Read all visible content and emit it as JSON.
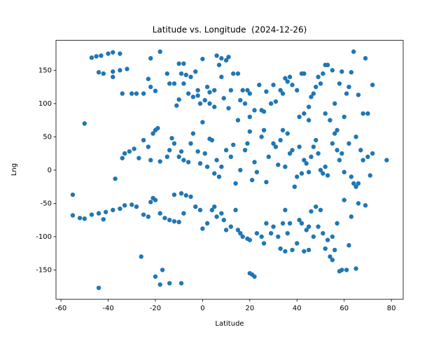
{
  "chart_data": {
    "type": "scatter",
    "title": "Latitude vs. Longitude  (2024-12-26)",
    "x_label": "Latitude",
    "y_label": "Lng",
    "color": "#1f77b4",
    "xlim": [
      -62.1,
      85.0
    ],
    "ylim": [
      -194,
      195
    ],
    "xticks": [
      -60,
      -40,
      -20,
      0,
      20,
      40,
      60,
      80
    ],
    "yticks": [
      -150,
      -100,
      -50,
      0,
      50,
      100,
      150
    ],
    "x": [
      -47,
      -45,
      -43,
      -40,
      -38,
      -35,
      -44,
      -42,
      -38,
      -35,
      -32,
      -30,
      -34,
      -38,
      -28,
      -25,
      -23,
      -22,
      -18,
      -15,
      -14,
      -12,
      -10,
      -8,
      -9,
      -7,
      -5,
      -3,
      -2,
      -20,
      -11,
      -10,
      -8,
      -6,
      -4,
      0,
      -1,
      -2,
      -22,
      2,
      3,
      5,
      6,
      7,
      8,
      8,
      10,
      11,
      12,
      13,
      15,
      16,
      17,
      18,
      19,
      20,
      22,
      24,
      25,
      26,
      27,
      29,
      30,
      31,
      33,
      34,
      35,
      36,
      37,
      38,
      40,
      42,
      43,
      45,
      46,
      47,
      48,
      49,
      50,
      51,
      52,
      53,
      55,
      56,
      58,
      59,
      61,
      62,
      63,
      64,
      66,
      68,
      69,
      70,
      72,
      20,
      15,
      11,
      9,
      5,
      3,
      1,
      41,
      43,
      45,
      52,
      54,
      57,
      60,
      65,
      -50,
      -37,
      -34,
      -33,
      -31,
      -29,
      -27,
      -25,
      -23,
      -21,
      -20,
      -19,
      -22,
      -18,
      -15,
      -14,
      -13,
      -12,
      -10,
      -9,
      -8,
      -6,
      -5,
      -4,
      -2,
      -1,
      0,
      1,
      2,
      3,
      4,
      5,
      6,
      7,
      8,
      10,
      12,
      13,
      14,
      16,
      18,
      19,
      20,
      21,
      22,
      23,
      25,
      26,
      27,
      28,
      30,
      31,
      32,
      33,
      34,
      35,
      36,
      37,
      38,
      39,
      40,
      41,
      42,
      43,
      44,
      45,
      46,
      47,
      48,
      49,
      50,
      51,
      52,
      53,
      55,
      56,
      57,
      58,
      59,
      60,
      62,
      63,
      64,
      65,
      66,
      67,
      68,
      70,
      71,
      78,
      72,
      -55,
      -55,
      -52,
      -50,
      -47,
      -44,
      -42,
      -41,
      -38,
      -35,
      -33,
      -30,
      -28,
      -25,
      -23,
      -21,
      -20,
      -18,
      -16,
      -14,
      -12,
      -10,
      -9,
      -7,
      -5,
      -3,
      -1,
      0,
      -26,
      -20,
      -18,
      -17,
      -14,
      -9,
      -44,
      -22,
      -12,
      -8,
      2,
      4,
      5,
      6,
      8,
      9,
      10,
      12,
      14,
      15,
      16,
      17,
      19,
      20,
      20,
      21,
      22,
      23,
      25,
      26,
      27,
      29,
      30,
      32,
      33,
      34,
      35,
      36,
      37,
      38,
      40,
      41,
      42,
      43,
      44,
      45,
      46,
      47,
      48,
      49,
      50,
      51,
      52,
      53,
      54,
      55,
      56,
      57,
      58,
      59,
      60,
      61,
      62,
      63,
      65,
      66,
      69,
      55,
      45,
      35
    ],
    "values": [
      169,
      171,
      172,
      175,
      177,
      175,
      147,
      145,
      148,
      150,
      152,
      115,
      115,
      140,
      115,
      115,
      137,
      168,
      178,
      145,
      130,
      130,
      160,
      160,
      145,
      143,
      140,
      148,
      120,
      119,
      97,
      106,
      130,
      115,
      110,
      167,
      100,
      112,
      125,
      125,
      117,
      120,
      172,
      158,
      168,
      140,
      165,
      170,
      120,
      145,
      145,
      105,
      120,
      100,
      120,
      115,
      90,
      128,
      90,
      88,
      118,
      100,
      128,
      103,
      120,
      115,
      138,
      133,
      140,
      128,
      120,
      145,
      145,
      95,
      110,
      115,
      125,
      140,
      130,
      145,
      158,
      158,
      150,
      100,
      130,
      148,
      115,
      125,
      147,
      178,
      113,
      85,
      168,
      85,
      128,
      80,
      75,
      93,
      108,
      95,
      100,
      105,
      80,
      85,
      75,
      85,
      75,
      60,
      80,
      50,
      70,
      -13,
      18,
      25,
      28,
      32,
      18,
      45,
      35,
      55,
      60,
      63,
      15,
      13,
      20,
      30,
      48,
      40,
      20,
      28,
      15,
      12,
      40,
      55,
      28,
      10,
      72,
      25,
      5,
      47,
      45,
      -5,
      15,
      -10,
      5,
      30,
      20,
      38,
      -20,
      0,
      30,
      40,
      58,
      -15,
      12,
      -3,
      50,
      60,
      -18,
      20,
      40,
      35,
      8,
      45,
      60,
      5,
      55,
      25,
      30,
      -25,
      -10,
      35,
      -5,
      15,
      10,
      -3,
      20,
      35,
      45,
      25,
      0,
      -5,
      5,
      -8,
      40,
      55,
      30,
      15,
      25,
      -3,
      40,
      -10,
      -20,
      -25,
      -20,
      30,
      15,
      20,
      -8,
      15,
      25,
      -37,
      -68,
      -72,
      -73,
      -67,
      -65,
      -74,
      -63,
      -60,
      -58,
      -53,
      -52,
      -55,
      -67,
      -70,
      -42,
      -45,
      -65,
      -72,
      -75,
      -77,
      -78,
      -35,
      -38,
      -40,
      -55,
      -60,
      -88,
      -130,
      -160,
      -172,
      -150,
      -170,
      -170,
      -177,
      -48,
      -37,
      -65,
      -80,
      -60,
      -55,
      -70,
      -65,
      -75,
      -90,
      -85,
      -60,
      -90,
      -95,
      -100,
      -103,
      -105,
      -155,
      -157,
      -160,
      -95,
      -100,
      -110,
      -80,
      -95,
      -85,
      -100,
      -118,
      -80,
      -122,
      -95,
      -80,
      -120,
      -110,
      -75,
      -80,
      -122,
      -90,
      -85,
      -62,
      -100,
      -55,
      -85,
      -60,
      -95,
      -118,
      -105,
      -130,
      -135,
      -120,
      -80,
      -152,
      -150,
      -45,
      -150,
      -113,
      -70,
      -148,
      -50,
      -53,
      -100,
      -120,
      -60
    ]
  }
}
